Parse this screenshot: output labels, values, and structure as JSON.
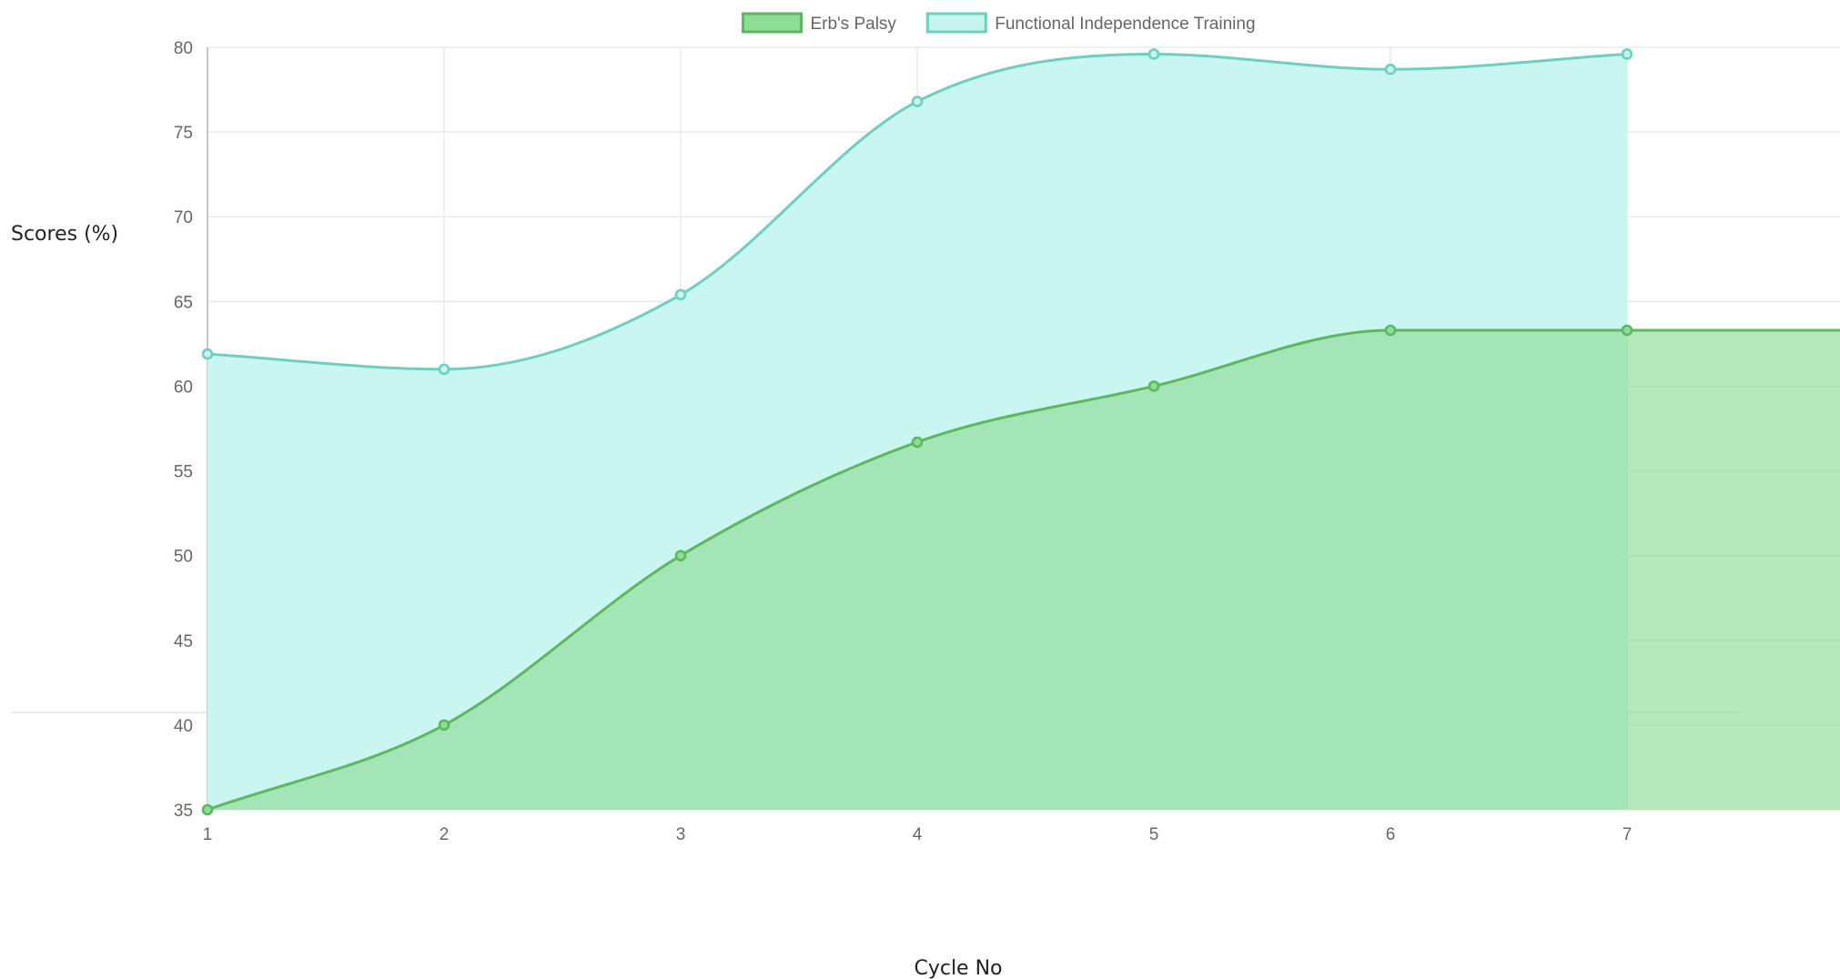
{
  "chart_data": {
    "type": "area",
    "title": "",
    "xlabel": "Cycle No",
    "ylabel": "Scores (%)",
    "categories": [
      "1",
      "2",
      "3",
      "4",
      "5",
      "6",
      "7"
    ],
    "ylim": [
      35,
      80
    ],
    "yticks": [
      35,
      40,
      45,
      50,
      55,
      60,
      65,
      70,
      75,
      80
    ],
    "grid": true,
    "legend_position": "top",
    "series": [
      {
        "name": "Erb's Palsy",
        "values": [
          35,
          40,
          50,
          56.7,
          60,
          63.3,
          63.3
        ],
        "line_color": "#5cb85c",
        "fill_color": "#8fdc97"
      },
      {
        "name": "Functional Independence Training",
        "values": [
          61.9,
          61,
          65.4,
          76.8,
          79.6,
          78.7,
          79.6
        ],
        "line_color": "#6ccfc0",
        "fill_color": "#c6f5f0"
      }
    ]
  }
}
